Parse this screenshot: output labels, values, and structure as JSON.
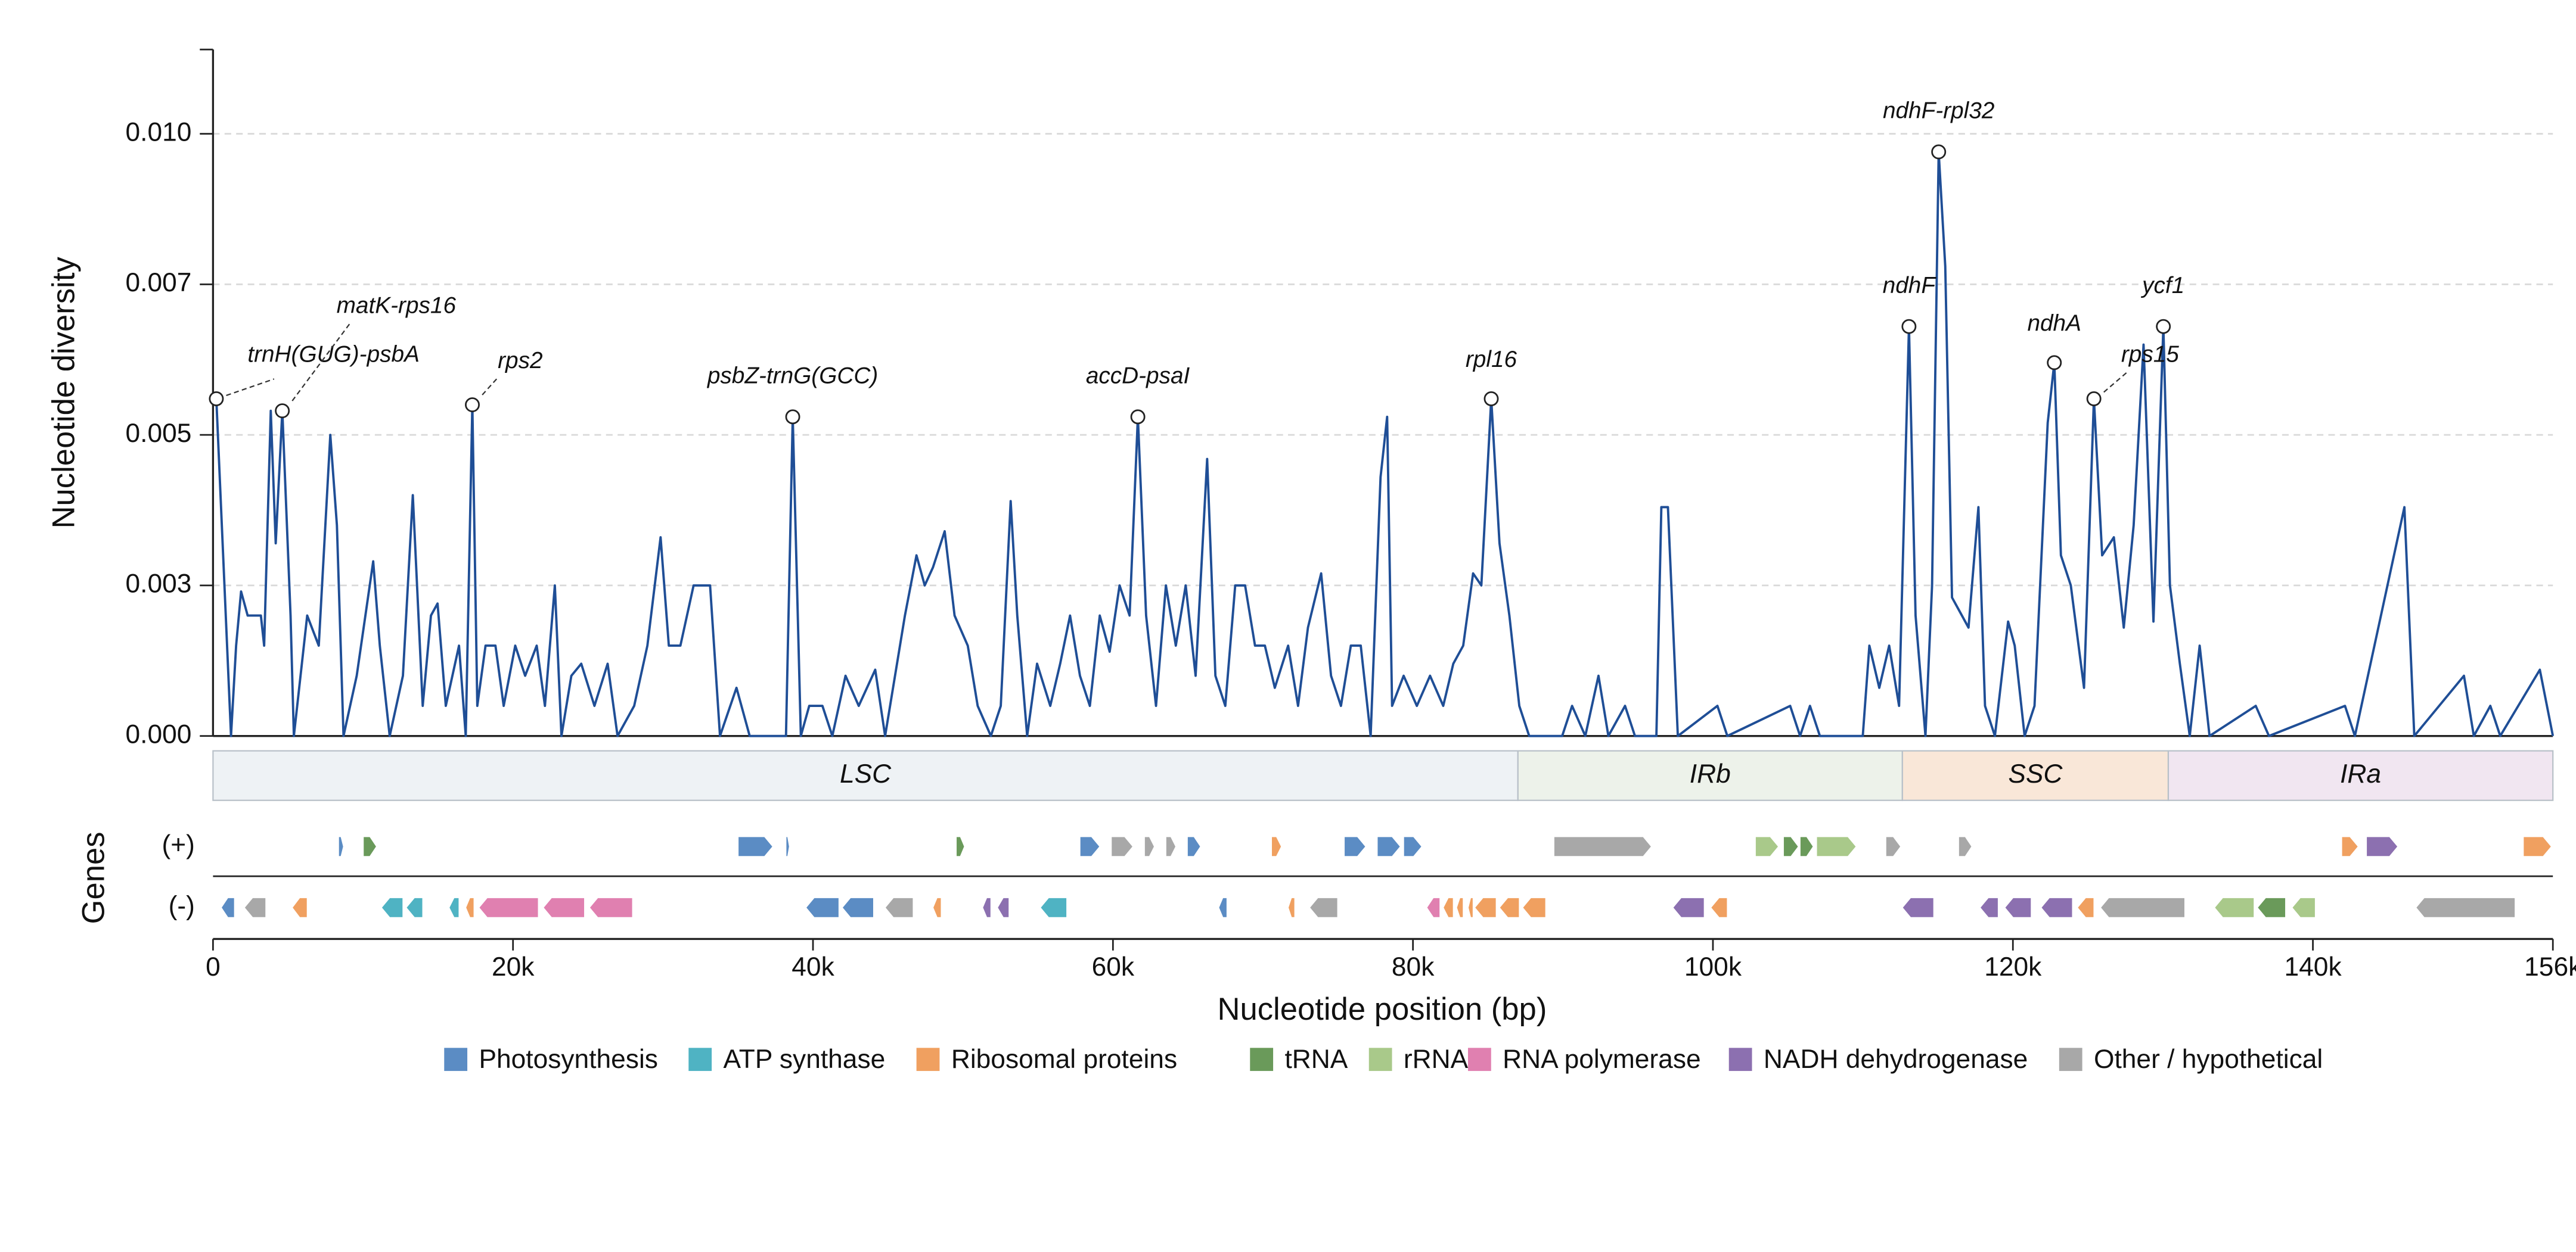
{
  "chart_data": {
    "type": "line",
    "y_label": "Nucleotide diversity",
    "x_label": "Nucleotide position (bp)",
    "track_label": "Genes",
    "plus_label": "(+)",
    "minus_label": "(-)",
    "color": "#1f4e96",
    "grid": true,
    "legend": "bottom",
    "xlim": [
      0,
      156000
    ],
    "ylim": [
      0,
      0.0114
    ],
    "xticks": [
      0,
      {
        "value": 20000,
        "label": "20k"
      },
      {
        "value": 40000,
        "label": "40k"
      },
      {
        "value": 60000,
        "label": "60k"
      },
      {
        "value": 80000,
        "label": "80k"
      },
      {
        "value": 100000,
        "label": "100k"
      },
      {
        "value": 120000,
        "label": "120k"
      },
      {
        "value": 140000,
        "label": "140k"
      },
      {
        "value": 156000,
        "label": "156k"
      }
    ],
    "yticks": [
      {
        "value": 0,
        "label": "0.000"
      },
      {
        "value": 0.0025,
        "label": "0.003"
      },
      0.005,
      {
        "value": 0.0075,
        "label": "0.007"
      },
      {
        "value": 0.01,
        "label": "0.010"
      }
    ],
    "x": [
      220,
      1200,
      1540,
      1870,
      2310,
      3190,
      3410,
      3850,
      4180,
      4620,
      5170,
      5390,
      6280,
      7050,
      7820,
      8260,
      8700,
      9580,
      10680,
      11120,
      11780,
      12660,
      13320,
      13980,
      14530,
      14970,
      15520,
      16400,
      16850,
      17290,
      17620,
      18170,
      18830,
      19380,
      20150,
      20810,
      21580,
      22130,
      22790,
      23230,
      23890,
      24550,
      25430,
      26310,
      26970,
      28080,
      28960,
      29840,
      30390,
      31160,
      32040,
      32700,
      33140,
      33800,
      34900,
      35780,
      38200,
      38650,
      39190,
      39750,
      40630,
      41290,
      42170,
      43050,
      44150,
      44810,
      46130,
      46900,
      47450,
      48000,
      48780,
      49440,
      50320,
      50980,
      51860,
      52520,
      53180,
      53620,
      54280,
      54940,
      55820,
      56480,
      57140,
      57800,
      58460,
      59120,
      59780,
      60440,
      61110,
      61660,
      62210,
      62870,
      63530,
      64190,
      64850,
      65510,
      66280,
      66830,
      67490,
      68150,
      68810,
      69470,
      70130,
      70790,
      71680,
      72340,
      73000,
      73880,
      74540,
      75200,
      75860,
      76520,
      77180,
      77840,
      78280,
      78610,
      79380,
      80260,
      81140,
      82020,
      82690,
      83350,
      84010,
      84560,
      85220,
      85770,
      86430,
      87090,
      87750,
      89950,
      90610,
      91490,
      92370,
      93030,
      94140,
      94800,
      96230,
      96560,
      97000,
      97660,
      100300,
      100960,
      105150,
      105810,
      106470,
      107130,
      109990,
      110430,
      111090,
      111750,
      112410,
      113070,
      113510,
      114170,
      114610,
      115050,
      115490,
      115940,
      116600,
      117040,
      117700,
      118140,
      118800,
      119680,
      120120,
      120780,
      121440,
      122320,
      122760,
      123200,
      123860,
      124740,
      125400,
      125950,
      126730,
      127390,
      128050,
      128710,
      129370,
      130030,
      130470,
      131130,
      131790,
      132450,
      133110,
      136190,
      137070,
      142140,
      142800,
      146100,
      146760,
      150070,
      150730,
      151830,
      152490,
      155130,
      156000
    ],
    "values": [
      0.0056,
      0,
      0.0015,
      0.0024,
      0.002,
      0.002,
      0.0015,
      0.0054,
      0.0032,
      0.0054,
      0.002,
      0,
      0.002,
      0.0015,
      0.005,
      0.0035,
      0,
      0.001,
      0.0029,
      0.0015,
      0,
      0.001,
      0.004,
      0.0005,
      0.002,
      0.0022,
      0.0005,
      0.0015,
      0,
      0.0055,
      0.0005,
      0.0015,
      0.0015,
      0.0005,
      0.0015,
      0.001,
      0.0015,
      0.0005,
      0.0025,
      0,
      0.001,
      0.0012,
      0.0005,
      0.0012,
      0,
      0.0005,
      0.0015,
      0.0033,
      0.0015,
      0.0015,
      0.0025,
      0.0025,
      0.0025,
      0,
      0.0008,
      0,
      0,
      0.0053,
      0,
      0.0005,
      0.0005,
      0,
      0.001,
      0.0005,
      0.0011,
      0,
      0.002,
      0.003,
      0.0025,
      0.0028,
      0.0034,
      0.002,
      0.0015,
      0.0005,
      0,
      0.0005,
      0.0039,
      0.002,
      0,
      0.0012,
      0.0005,
      0.0012,
      0.002,
      0.001,
      0.0005,
      0.002,
      0.0014,
      0.0025,
      0.002,
      0.0053,
      0.002,
      0.0005,
      0.0025,
      0.0015,
      0.0025,
      0.001,
      0.0046,
      0.001,
      0.0005,
      0.0025,
      0.0025,
      0.0015,
      0.0015,
      0.0008,
      0.0015,
      0.0005,
      0.0018,
      0.0027,
      0.001,
      0.0005,
      0.0015,
      0.0015,
      0,
      0.0043,
      0.0053,
      0.0005,
      0.001,
      0.0005,
      0.001,
      0.0005,
      0.0012,
      0.0015,
      0.0027,
      0.0025,
      0.0056,
      0.0032,
      0.002,
      0.0005,
      0,
      0,
      0.0005,
      0,
      0.001,
      0,
      0.0005,
      0,
      0,
      0.0038,
      0.0038,
      0,
      0.0005,
      0,
      0.0005,
      0,
      0.0005,
      0,
      0,
      0.0015,
      0.0008,
      0.0015,
      0.0005,
      0.0068,
      0.002,
      0,
      0.0025,
      0.0097,
      0.0078,
      0.0023,
      0.002,
      0.0018,
      0.0038,
      0.0005,
      0,
      0.0019,
      0.0015,
      0,
      0.0005,
      0.0052,
      0.0062,
      0.003,
      0.0025,
      0.0008,
      0.0056,
      0.003,
      0.0033,
      0.0018,
      0.0035,
      0.0065,
      0.0019,
      0.0068,
      0.0025,
      0.0012,
      0,
      0.0015,
      0,
      0.0005,
      0,
      0.0005,
      0,
      0.0038,
      0,
      0.001,
      0,
      0.0005,
      0,
      0.0011,
      0
    ],
    "annotations": [
      {
        "text": "trnH(GUG)-psbA",
        "x": 220,
        "y": 0.0056
      },
      {
        "text": "matK-rps16",
        "x": 4620,
        "y": 0.0054
      },
      {
        "text": "rps2",
        "x": 17290,
        "y": 0.0055
      },
      {
        "text": "psbZ-trnG(GCC)",
        "x": 38650,
        "y": 0.0053
      },
      {
        "text": "accD-psaI",
        "x": 61660,
        "y": 0.0053
      },
      {
        "text": "rpl16",
        "x": 85220,
        "y": 0.0056
      },
      {
        "text": "ndhF",
        "x": 113070,
        "y": 0.0068
      },
      {
        "text": "ndhF-rpl32",
        "x": 115050,
        "y": 0.0097
      },
      {
        "text": "ndhA",
        "x": 122760,
        "y": 0.0062
      },
      {
        "text": "rps15",
        "x": 125400,
        "y": 0.0056
      },
      {
        "text": "ycf1",
        "x": 130030,
        "y": 0.0068
      }
    ],
    "regions": [
      {
        "name": "LSC",
        "start": 0,
        "end": 87000,
        "color": "#eef2f5"
      },
      {
        "name": "IRb",
        "start": 87000,
        "end": 112630,
        "color": "#edf2ea"
      },
      {
        "name": "SSC",
        "start": 112630,
        "end": 130360,
        "color": "#f9e7d8"
      },
      {
        "name": "IRa",
        "start": 130360,
        "end": 156000,
        "color": "#f1e6f1"
      }
    ],
    "gene_groups": [
      {
        "name": "Photosynthesis",
        "color": "#5b8cc4",
        "plus": [
          [
            8370,
            8700
          ],
          [
            35010,
            37320
          ],
          [
            38200,
            38430
          ],
          [
            57800,
            59120
          ],
          [
            64960,
            65840
          ],
          [
            75420,
            76850
          ],
          [
            77620,
            79160
          ],
          [
            79380,
            80590
          ]
        ],
        "minus": [
          [
            550,
            1430
          ],
          [
            39530,
            41730
          ],
          [
            41950,
            44040
          ],
          [
            67050,
            67600
          ]
        ]
      },
      {
        "name": "ATP synthase",
        "color": "#4fb3c3",
        "plus": [],
        "minus": [
          [
            11230,
            12660
          ],
          [
            12880,
            13980
          ],
          [
            15740,
            16400
          ],
          [
            55160,
            56920
          ]
        ]
      },
      {
        "name": "Ribosomal proteins",
        "color": "#f0a060",
        "plus": [
          [
            70570,
            71230
          ],
          [
            141920,
            143020
          ],
          [
            154030,
            155900
          ]
        ],
        "minus": [
          [
            5280,
            6280
          ],
          [
            16850,
            17400
          ],
          [
            48000,
            48550
          ],
          [
            71680,
            72120
          ],
          [
            82020,
            82690
          ],
          [
            82910,
            83350
          ],
          [
            83680,
            84010
          ],
          [
            84120,
            85550
          ],
          [
            85770,
            87090
          ],
          [
            87310,
            88850
          ],
          [
            99860,
            100960
          ],
          [
            124300,
            125400
          ]
        ]
      },
      {
        "name": "tRNA",
        "color": "#6a9a5a",
        "plus": [
          [
            10020,
            10900
          ],
          [
            49550,
            50100
          ],
          [
            104700,
            105700
          ],
          [
            105810,
            106690
          ]
        ],
        "minus": [
          [
            136300,
            138180
          ]
        ]
      },
      {
        "name": "rRNA",
        "color": "#a9c98a",
        "plus": [
          [
            102830,
            104370
          ],
          [
            106910,
            109550
          ]
        ],
        "minus": [
          [
            133440,
            136080
          ],
          [
            138610,
            140160
          ]
        ]
      },
      {
        "name": "RNA polymerase",
        "color": "#e080b0",
        "plus": [],
        "minus": [
          [
            17730,
            21690
          ],
          [
            22020,
            24770
          ],
          [
            25100,
            27970
          ],
          [
            80920,
            81800
          ]
        ]
      },
      {
        "name": "NADH dehydrogenase",
        "color": "#8c70b0",
        "plus": [
          [
            143570,
            145660
          ]
        ],
        "minus": [
          [
            51310,
            51860
          ],
          [
            52300,
            53070
          ],
          [
            97330,
            99420
          ],
          [
            112630,
            114720
          ],
          [
            117810,
            119020
          ],
          [
            119460,
            121220
          ],
          [
            121880,
            123970
          ]
        ]
      },
      {
        "name": "Other / hypothetical",
        "color": "#a8a8a8",
        "plus": [
          [
            59890,
            61330
          ],
          [
            62100,
            62760
          ],
          [
            63530,
            64190
          ],
          [
            89400,
            95900
          ],
          [
            111530,
            112520
          ],
          [
            116380,
            117260
          ]
        ],
        "minus": [
          [
            2090,
            3520
          ],
          [
            44810,
            46680
          ],
          [
            73110,
            74980
          ],
          [
            125840,
            131460
          ],
          [
            146870,
            153480
          ]
        ]
      }
    ]
  }
}
